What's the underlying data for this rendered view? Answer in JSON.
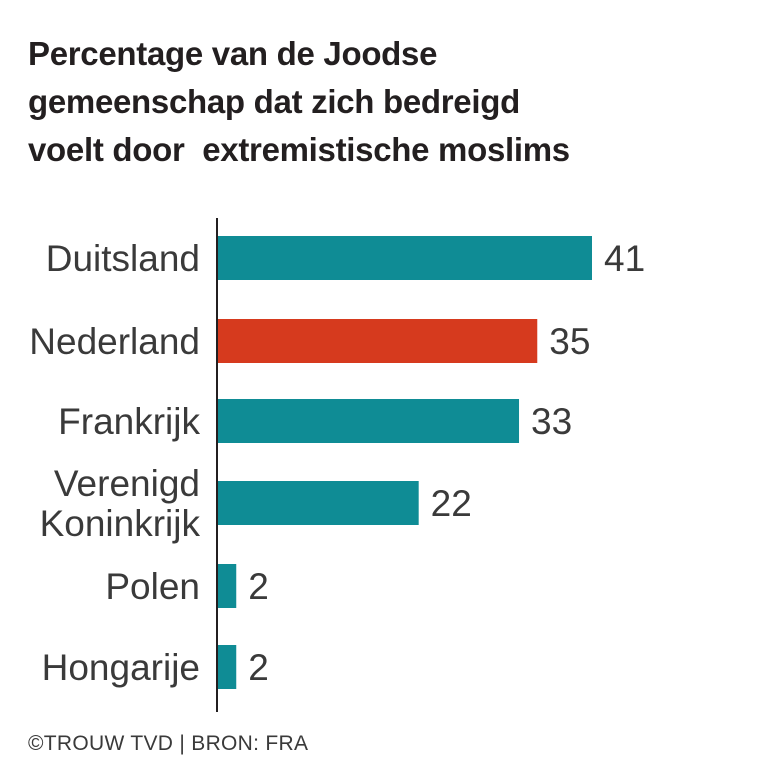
{
  "title_lines": [
    "Percentage van de Joodse",
    "gemeenschap dat zich bedreigd",
    "voelt door  extremistische moslims"
  ],
  "source": "©TROUW TVD | BRON: FRA",
  "colors": {
    "default_bar": "#0f8c95",
    "highlight_bar": "#d63a1e",
    "axis": "#231f20"
  },
  "chart_data": {
    "type": "bar",
    "orientation": "horizontal",
    "title": "Percentage van de Joodse gemeenschap dat zich bedreigd voelt door  extremistische moslims",
    "categories": [
      [
        "Duitsland"
      ],
      [
        "Nederland"
      ],
      [
        "Frankrijk"
      ],
      [
        "Verenigd",
        "Koninkrijk"
      ],
      [
        "Polen"
      ],
      [
        "Hongarije"
      ]
    ],
    "values": [
      41,
      35,
      33,
      22,
      2,
      2
    ],
    "highlight": [
      false,
      true,
      false,
      false,
      false,
      false
    ],
    "xlim": [
      0,
      41
    ],
    "grid": false
  }
}
